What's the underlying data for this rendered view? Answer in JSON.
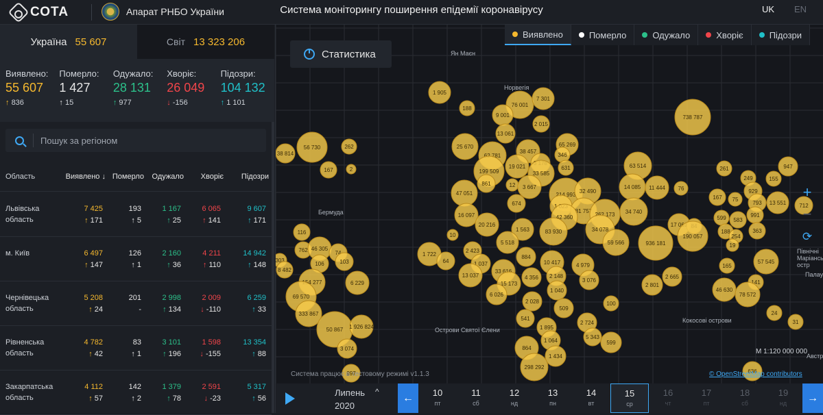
{
  "brand": {
    "logo_text": "СОТА",
    "org": "Апарат РНБО України",
    "app_title": "Система моніторингу поширення епідемії коронавірусу",
    "lang_uk": "UK",
    "lang_en": "EN"
  },
  "tabs": [
    {
      "label": "Україна",
      "value": "55 607"
    },
    {
      "label": "Світ",
      "value": "13 323 206"
    }
  ],
  "stats": [
    {
      "label": "Виявлено:",
      "value": "55 607",
      "delta": "836",
      "color": "#f5b82e"
    },
    {
      "label": "Померло:",
      "value": "1 427",
      "delta": "15",
      "color": "#e6e6e6"
    },
    {
      "label": "Одужало:",
      "value": "28 131",
      "delta": "977",
      "color": "#2cc08a"
    },
    {
      "label": "Хворіє:",
      "value": "26 049",
      "delta": "-156",
      "color": "#f0454a"
    },
    {
      "label": "Підозри:",
      "value": "104 132",
      "delta": "1 101",
      "color": "#20c0c8"
    }
  ],
  "search": {
    "placeholder": "Пошук за регіоном"
  },
  "table": {
    "headers": [
      "Область",
      "Виявлено",
      "Померло",
      "Одужало",
      "Хворіє",
      "Підозри"
    ],
    "rows": [
      {
        "name": "Львівська область",
        "det": "7 425",
        "det_d": "171",
        "dead": "193",
        "dead_d": "5",
        "rec": "1 167",
        "rec_d": "25",
        "sick": "6 065",
        "sick_d": "141",
        "susp": "9 607",
        "susp_d": "171"
      },
      {
        "name": "м. Київ",
        "det": "6 497",
        "det_d": "147",
        "dead": "126",
        "dead_d": "1",
        "rec": "2 160",
        "rec_d": "36",
        "sick": "4 211",
        "sick_d": "110",
        "susp": "14 942",
        "susp_d": "148"
      },
      {
        "name": "Чернівецька область",
        "det": "5 208",
        "det_d": "24",
        "dead": "201",
        "dead_d": "-",
        "rec": "2 998",
        "rec_d": "134",
        "sick": "2 009",
        "sick_d": "-110",
        "susp": "6 259",
        "susp_d": "33"
      },
      {
        "name": "Рівненська область",
        "det": "4 782",
        "det_d": "42",
        "dead": "83",
        "dead_d": "1",
        "rec": "3 101",
        "rec_d": "196",
        "sick": "1 598",
        "sick_d": "-155",
        "susp": "13 354",
        "susp_d": "88"
      },
      {
        "name": "Закарпатська область",
        "det": "4 112",
        "det_d": "57",
        "dead": "142",
        "dead_d": "2",
        "rec": "1 379",
        "rec_d": "78",
        "sick": "2 591",
        "sick_d": "-23",
        "susp": "5 317",
        "susp_d": "56"
      }
    ]
  },
  "map": {
    "stat_button": "Статистика",
    "legend": [
      "Виявлено",
      "Померло",
      "Одужало",
      "Хворіє",
      "Підозри"
    ],
    "legend_colors": [
      "#f5b82e",
      "#ffffff",
      "#2cc08a",
      "#f0454a",
      "#20c0c8"
    ],
    "labels": [
      "Ян Маєн",
      "Норвегія",
      "Бермуда",
      "Палау",
      "Північні Маріанські остр",
      "Кокосові острови",
      "Острови Святої Єлени",
      "Австралія"
    ],
    "scale": "M 1:120 000 000",
    "attribution": "© OpenStreetMap contributors",
    "test_mode": "Система працює в тестовому режимі v1.1.3",
    "bubbles": [
      "38 814",
      "56 730",
      "262",
      "167",
      "2",
      "1 905",
      "188",
      "76 001",
      "7 301",
      "738 787",
      "9 001",
      "2 015",
      "13 061",
      "25 670",
      "65 269",
      "62 781",
      "38 457",
      "346",
      "3 178",
      "199 509",
      "19 021",
      "33 585",
      "631",
      "63 514",
      "261",
      "947",
      "861",
      "12",
      "3 667",
      "14 085",
      "11 444",
      "76",
      "249",
      "155",
      "47 051",
      "214 993",
      "32 490",
      "929",
      "13 551",
      "712",
      "674",
      "1 023",
      "167",
      "75",
      "793",
      "16 097",
      "81 757",
      "262 173",
      "34 740",
      "599",
      "583",
      "991",
      "20 216",
      "42 360",
      "17 061",
      "84",
      "1 563",
      "83 930",
      "34 078",
      "190 057",
      "188",
      "254",
      "363",
      "10",
      "5 518",
      "59 566",
      "936 181",
      "19",
      "1 722",
      "2 423",
      "884",
      "57 545",
      "64",
      "10 417",
      "4 979",
      "165",
      "1 037",
      "33 616",
      "4 356",
      "2 148",
      "141",
      "13 037",
      "3 076",
      "2 801",
      "2 665",
      "46 630",
      "78 572",
      "15 173",
      "1 040",
      "6 026",
      "2 028",
      "100",
      "509",
      "24",
      "541",
      "31",
      "2 724",
      "1 895",
      "5 343",
      "1 064",
      "599",
      "864",
      "1 434",
      "298 292",
      "116",
      "303",
      "762",
      "46 305",
      "74",
      "8 482",
      "106",
      "103",
      "154 277",
      "6 229",
      "69 570",
      "333 867",
      "50 867",
      "1 926 824",
      "3 074",
      "997",
      "636"
    ]
  },
  "timeline": {
    "month": "Липень",
    "year": "2020",
    "days": [
      {
        "d": "10",
        "w": "пт"
      },
      {
        "d": "11",
        "w": "сб"
      },
      {
        "d": "12",
        "w": "нд"
      },
      {
        "d": "13",
        "w": "пн"
      },
      {
        "d": "14",
        "w": "вт"
      },
      {
        "d": "15",
        "w": "ср"
      },
      {
        "d": "16",
        "w": "чт"
      },
      {
        "d": "17",
        "w": "пт"
      },
      {
        "d": "18",
        "w": "сб"
      },
      {
        "d": "19",
        "w": "нд"
      }
    ],
    "active_day": "15"
  }
}
